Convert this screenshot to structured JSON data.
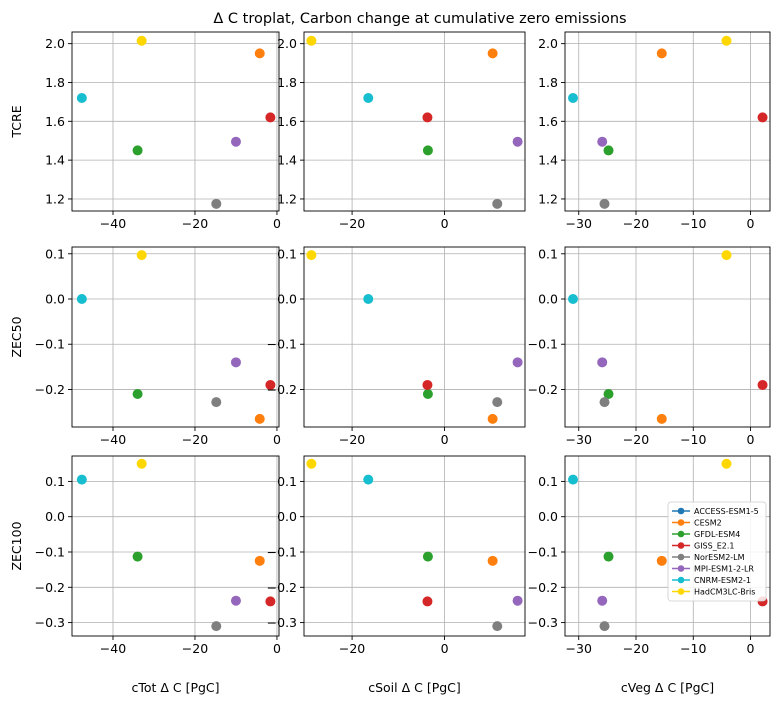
{
  "title": "Δ C troplat, Carbon change at cumulative zero emissions",
  "models": [
    "ACCESS-ESM1-5",
    "CESM2",
    "GFDL-ESM4",
    "GISS_E2.1",
    "NorESM2-LM",
    "MPI-ESM1-2-LR",
    "CNRM-ESM2-1",
    "HadCM3LC-Bris"
  ],
  "colors": [
    "#1f77b4",
    "#ff7f0e",
    "#2ca02c",
    "#d62728",
    "#7f7f7f",
    "#9467bd",
    "#17becf",
    "#ffd700"
  ],
  "chart_data": {
    "type": "scatter",
    "grid": true,
    "legend_placement": "lower right of bottom-right panel",
    "columns": [
      {
        "key": "cTot",
        "xlabel": "cTot Δ C [PgC]",
        "xlim": [
          -50,
          0.5
        ],
        "xticks": [
          -40,
          -20,
          0
        ],
        "xtick_labels": [
          "−40",
          "−20",
          "0"
        ]
      },
      {
        "key": "cSoil",
        "xlabel": "cSoil Δ C [PgC]",
        "xlim": [
          -30.4,
          17.4
        ],
        "xticks": [
          -20,
          0
        ],
        "xtick_labels": [
          "−20",
          "0"
        ]
      },
      {
        "key": "cVeg",
        "xlabel": "cVeg Δ C [PgC]",
        "xlim": [
          -32.4,
          3.4
        ],
        "xticks": [
          -30,
          -20,
          -10,
          0
        ],
        "xtick_labels": [
          "−30",
          "−20",
          "−10",
          "0"
        ]
      }
    ],
    "rows": [
      {
        "key": "TCRE",
        "ylabel": "TCRE",
        "ylim": [
          1.138,
          2.06
        ],
        "yticks": [
          1.2,
          1.4,
          1.6,
          1.8,
          2.0
        ],
        "ytick_labels": [
          "1.2",
          "1.4",
          "1.6",
          "1.8",
          "2.0"
        ]
      },
      {
        "key": "ZEC50",
        "ylabel": "ZEC50",
        "ylim": [
          -0.283,
          0.115
        ],
        "yticks": [
          -0.2,
          -0.1,
          0.0,
          0.1
        ],
        "ytick_labels": [
          "−0.2",
          "−0.1",
          "0.0",
          "0.1"
        ]
      },
      {
        "key": "ZEC100",
        "ylabel": "ZEC100",
        "ylim": [
          -0.338,
          0.172
        ],
        "yticks": [
          -0.3,
          -0.2,
          -0.1,
          0.0,
          0.1
        ],
        "ytick_labels": [
          "−0.3",
          "−0.2",
          "−0.1",
          "0.0",
          "0.1"
        ]
      }
    ],
    "series": [
      {
        "name": "ACCESS-ESM1-5",
        "cTot": null,
        "cSoil": null,
        "cVeg": null,
        "TCRE": null,
        "ZEC50": null,
        "ZEC100": null
      },
      {
        "name": "CESM2",
        "cTot": -4.2,
        "cSoil": 10.4,
        "cVeg": -15.5,
        "TCRE": 1.95,
        "ZEC50": -0.265,
        "ZEC100": -0.125
      },
      {
        "name": "GFDL-ESM4",
        "cTot": -34.0,
        "cSoil": -3.6,
        "cVeg": -24.8,
        "TCRE": 1.45,
        "ZEC50": -0.21,
        "ZEC100": -0.113
      },
      {
        "name": "GISS_E2.1",
        "cTot": -1.6,
        "cSoil": -3.7,
        "cVeg": 2.1,
        "TCRE": 1.62,
        "ZEC50": -0.19,
        "ZEC100": -0.24
      },
      {
        "name": "NorESM2-LM",
        "cTot": -14.8,
        "cSoil": 11.4,
        "cVeg": -25.5,
        "TCRE": 1.175,
        "ZEC50": -0.228,
        "ZEC100": -0.31
      },
      {
        "name": "MPI-ESM1-2-LR",
        "cTot": -10.0,
        "cSoil": 15.8,
        "cVeg": -25.9,
        "TCRE": 1.495,
        "ZEC50": -0.14,
        "ZEC100": -0.238
      },
      {
        "name": "CNRM-ESM2-1",
        "cTot": -47.6,
        "cSoil": -16.5,
        "cVeg": -31.0,
        "TCRE": 1.72,
        "ZEC50": 0.0,
        "ZEC100": 0.105
      },
      {
        "name": "HadCM3LC-Bris",
        "cTot": -33.0,
        "cSoil": -28.8,
        "cVeg": -4.2,
        "TCRE": 2.015,
        "ZEC50": 0.097,
        "ZEC100": 0.15
      }
    ]
  }
}
